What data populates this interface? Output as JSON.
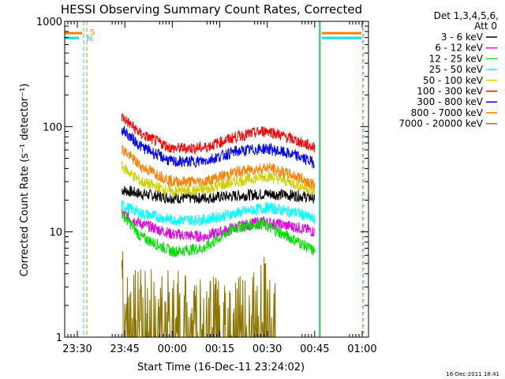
{
  "chart_data": {
    "type": "line",
    "title": "HESSI Observing Summary Count Rates, Corrected",
    "xlabel": "Start Time (16-Dec-11 23:24:02)",
    "ylabel": "Corrected Count Rate (s⁻¹ detector⁻¹)",
    "ylog": true,
    "ylim": [
      1,
      1000
    ],
    "xlim_min": [
      -34,
      62
    ],
    "x_ticks": [
      {
        "label": "23:30",
        "min": -30
      },
      {
        "label": "23:45",
        "min": -15
      },
      {
        "label": "00:00",
        "min": 0
      },
      {
        "label": "00:15",
        "min": 15
      },
      {
        "label": "00:30",
        "min": 30
      },
      {
        "label": "00:45",
        "min": 45
      },
      {
        "label": "01:00",
        "min": 60
      }
    ],
    "y_ticks": [
      {
        "label": "1000",
        "v": 1000
      },
      {
        "label": "100",
        "v": 100
      },
      {
        "label": "10",
        "v": 10
      },
      {
        "label": "1",
        "v": 1
      }
    ],
    "legend_header": [
      "Det 1,3,4,5,6,",
      "Att 0"
    ],
    "legend_placement": "right",
    "flags": [
      {
        "label": "S",
        "color": "#ff7f00"
      },
      {
        "label": "N",
        "color": "#00e5ee"
      }
    ],
    "flag_times_min": {
      "s_bar_end": -28.5,
      "n_bar_end": -29.5,
      "night_end": -28,
      "saa_end": -27,
      "night_start": 46.5,
      "saa_start": 46.8,
      "bar_resume": 47.2,
      "bar_end": 59.8,
      "far_dash": 60.2
    },
    "observing_window_min": [
      -16,
      46
    ],
    "series": [
      {
        "name": "3 - 6 keV",
        "color": "#000000",
        "x": [
          -16,
          -10,
          0,
          10,
          20,
          30,
          40,
          45
        ],
        "y": [
          25,
          23,
          21,
          21,
          22,
          23,
          22,
          21
        ]
      },
      {
        "name": "6 - 12 keV",
        "color": "#e000e0",
        "x": [
          -16,
          -10,
          0,
          10,
          20,
          28,
          40,
          45
        ],
        "y": [
          15,
          12,
          9.5,
          9,
          11,
          12.5,
          11,
          10
        ]
      },
      {
        "name": "12 - 25 keV",
        "color": "#00e000",
        "x": [
          -16,
          -10,
          0,
          10,
          20,
          28,
          40,
          45
        ],
        "y": [
          15,
          9,
          6.5,
          7,
          11,
          12,
          8,
          6.5
        ]
      },
      {
        "name": "25 - 50 keV",
        "color": "#00ffff",
        "x": [
          -16,
          -10,
          0,
          10,
          20,
          30,
          40,
          45
        ],
        "y": [
          18,
          15,
          13,
          13,
          15,
          17,
          15,
          13
        ]
      },
      {
        "name": "50 - 100 keV",
        "color": "#d0d000",
        "x": [
          -16,
          -10,
          0,
          10,
          20,
          30,
          40,
          45
        ],
        "y": [
          42,
          30,
          24,
          25,
          30,
          34,
          28,
          24
        ]
      },
      {
        "name": "100 - 300 keV",
        "color": "#ff0000",
        "x": [
          -16,
          -10,
          0,
          10,
          20,
          30,
          40,
          45
        ],
        "y": [
          125,
          85,
          62,
          63,
          80,
          92,
          72,
          63
        ]
      },
      {
        "name": "300 - 800 keV",
        "color": "#0000ff",
        "x": [
          -16,
          -10,
          0,
          10,
          20,
          30,
          40,
          45
        ],
        "y": [
          95,
          65,
          46,
          47,
          58,
          62,
          52,
          45
        ]
      },
      {
        "name": "800 - 7000 keV",
        "color": "#ff7f00",
        "x": [
          -16,
          -10,
          0,
          10,
          20,
          30,
          40,
          45
        ],
        "y": [
          62,
          42,
          30,
          30,
          37,
          41,
          33,
          28
        ]
      },
      {
        "name": "7000 - 20000 keV",
        "color": "#8b7500",
        "x": [
          -16,
          -12,
          20,
          26,
          30,
          33
        ],
        "y": [
          3,
          2.2,
          1.6,
          2.1,
          2.8,
          1.8
        ]
      }
    ]
  },
  "footer": {
    "date_stamp": "16-Dec-2011 18:41"
  }
}
